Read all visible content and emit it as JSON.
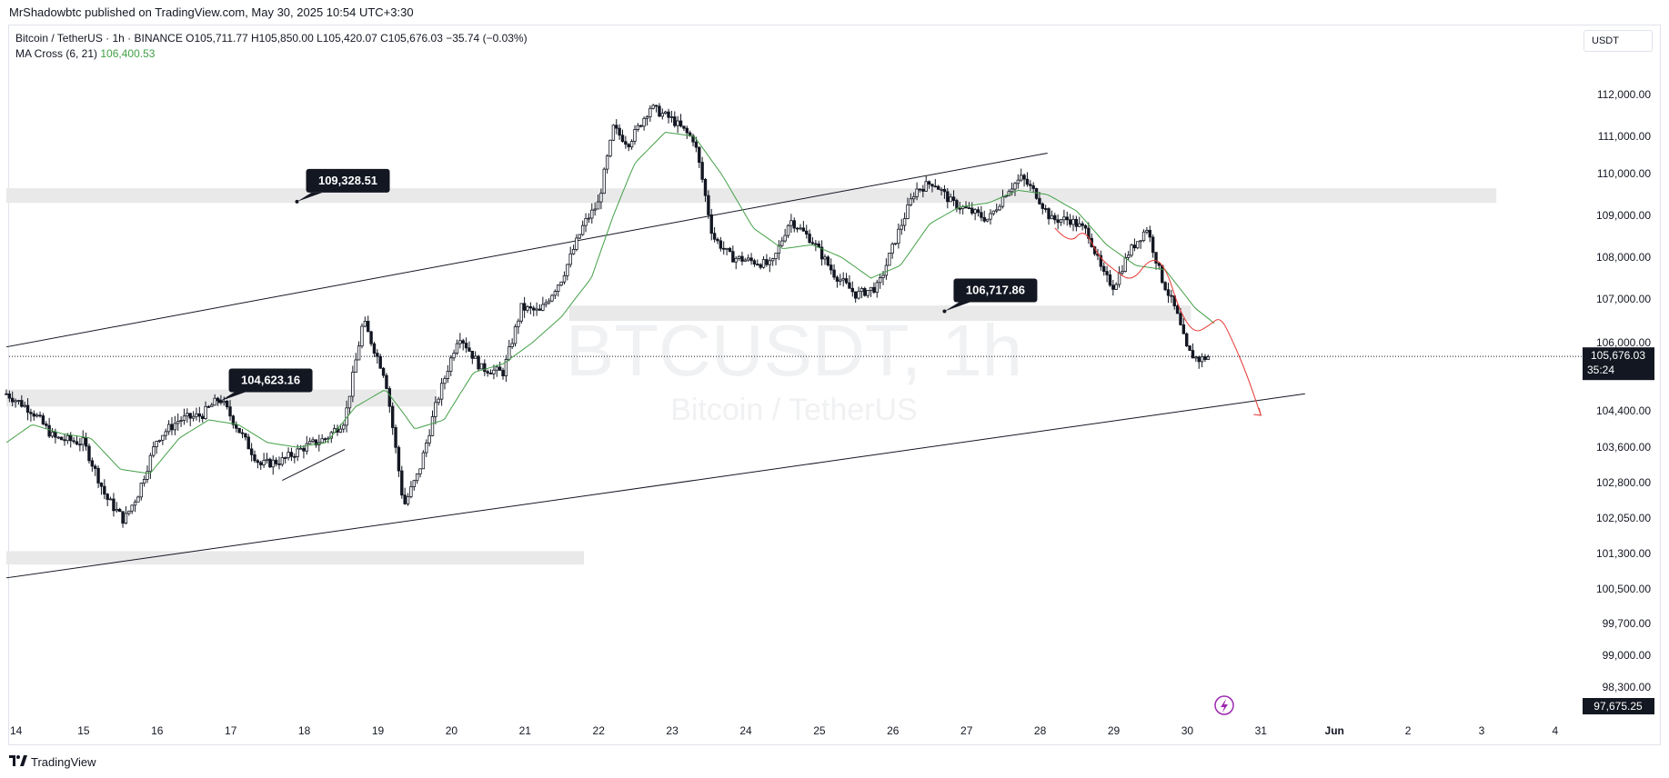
{
  "publisher_line": "MrShadowbtc published on TradingView.com, May 30, 2025 10:54 UTC+3:30",
  "legend": {
    "symbol_line": "Bitcoin / TetherUS · 1h · BINANCE  O105,711.77  H105,850.00  L105,420.07  C105,676.03  −35.74 (−0.03%)",
    "ma_label": "MA Cross (6, 21)",
    "ma_value": "106,400.53"
  },
  "currency_button": "USDT",
  "watermark": {
    "symbol": "BTCUSDT, 1h",
    "name": "Bitcoin / TetherUS"
  },
  "footer_brand": "TradingView",
  "colors": {
    "up": "#131722",
    "down": "#131722",
    "ma": "#43a047",
    "forecast": "#e53935",
    "zone": "#e9e9ea"
  },
  "chart_data": {
    "type": "candlestick",
    "timeframe": "1h",
    "x_ticks": [
      "14",
      "15",
      "16",
      "17",
      "18",
      "19",
      "20",
      "21",
      "22",
      "23",
      "24",
      "25",
      "26",
      "27",
      "28",
      "29",
      "30",
      "31",
      "Jun",
      "2",
      "3",
      "4"
    ],
    "y_ticks": [
      "112,000.00",
      "111,000.00",
      "110,000.00",
      "109,000.00",
      "108,000.00",
      "107,000.00",
      "106,000.00",
      "104,400.00",
      "103,600.00",
      "102,800.00",
      "102,050.00",
      "101,300.00",
      "100,500.00",
      "99,700.00",
      "99,000.00",
      "98,300.00"
    ],
    "y_tick_values": [
      112000,
      111000,
      110000,
      109000,
      108000,
      107000,
      106000,
      104400,
      103600,
      102800,
      102050,
      101300,
      100500,
      99700,
      99000,
      98300
    ],
    "last_price_label": "105,676.03",
    "countdown": "35:24",
    "low_marker_label": "97,675.25",
    "last_price": 105676.03,
    "price_anchors": [
      [
        13.95,
        104800
      ],
      [
        14.3,
        104400
      ],
      [
        14.6,
        103800
      ],
      [
        15.0,
        103700
      ],
      [
        15.3,
        102500
      ],
      [
        15.55,
        102000
      ],
      [
        15.75,
        102600
      ],
      [
        16.0,
        103800
      ],
      [
        16.3,
        104200
      ],
      [
        16.6,
        104300
      ],
      [
        16.85,
        104700
      ],
      [
        17.1,
        104000
      ],
      [
        17.4,
        103200
      ],
      [
        17.7,
        103300
      ],
      [
        18.0,
        103600
      ],
      [
        18.3,
        103800
      ],
      [
        18.55,
        104200
      ],
      [
        18.8,
        106500
      ],
      [
        19.1,
        105200
      ],
      [
        19.35,
        102300
      ],
      [
        19.55,
        103000
      ],
      [
        19.8,
        104600
      ],
      [
        20.1,
        106200
      ],
      [
        20.4,
        105400
      ],
      [
        20.7,
        105300
      ],
      [
        20.95,
        106800
      ],
      [
        21.2,
        106700
      ],
      [
        21.5,
        107500
      ],
      [
        21.8,
        108800
      ],
      [
        22.0,
        109300
      ],
      [
        22.2,
        111200
      ],
      [
        22.4,
        110800
      ],
      [
        22.7,
        111700
      ],
      [
        23.0,
        111400
      ],
      [
        23.3,
        110900
      ],
      [
        23.55,
        108500
      ],
      [
        23.8,
        108000
      ],
      [
        24.1,
        107900
      ],
      [
        24.35,
        107800
      ],
      [
        24.6,
        108900
      ],
      [
        24.9,
        108400
      ],
      [
        25.2,
        107600
      ],
      [
        25.5,
        107100
      ],
      [
        25.8,
        107300
      ],
      [
        26.05,
        108500
      ],
      [
        26.3,
        109600
      ],
      [
        26.55,
        109800
      ],
      [
        26.8,
        109300
      ],
      [
        27.05,
        109100
      ],
      [
        27.3,
        108900
      ],
      [
        27.55,
        109600
      ],
      [
        27.75,
        109900
      ],
      [
        27.95,
        109500
      ],
      [
        28.15,
        108900
      ],
      [
        28.4,
        108900
      ],
      [
        28.65,
        108600
      ],
      [
        28.85,
        107600
      ],
      [
        29.0,
        107300
      ],
      [
        29.2,
        108100
      ],
      [
        29.45,
        108700
      ],
      [
        29.65,
        107500
      ],
      [
        29.85,
        106700
      ],
      [
        30.0,
        105800
      ],
      [
        30.15,
        105600
      ],
      [
        30.3,
        105676
      ]
    ],
    "ma_anchors": [
      [
        13.95,
        103700
      ],
      [
        14.3,
        104100
      ],
      [
        14.7,
        103900
      ],
      [
        15.1,
        103800
      ],
      [
        15.5,
        103100
      ],
      [
        15.9,
        103000
      ],
      [
        16.3,
        103800
      ],
      [
        16.7,
        104200
      ],
      [
        17.1,
        104100
      ],
      [
        17.5,
        103700
      ],
      [
        17.9,
        103600
      ],
      [
        18.3,
        103700
      ],
      [
        18.7,
        104500
      ],
      [
        19.1,
        104900
      ],
      [
        19.5,
        104000
      ],
      [
        19.9,
        104200
      ],
      [
        20.3,
        105300
      ],
      [
        20.7,
        105500
      ],
      [
        21.1,
        106000
      ],
      [
        21.5,
        106600
      ],
      [
        21.9,
        107500
      ],
      [
        22.2,
        109000
      ],
      [
        22.5,
        110300
      ],
      [
        22.9,
        111100
      ],
      [
        23.3,
        111000
      ],
      [
        23.7,
        109900
      ],
      [
        24.1,
        108700
      ],
      [
        24.5,
        108200
      ],
      [
        24.9,
        108300
      ],
      [
        25.3,
        108000
      ],
      [
        25.7,
        107500
      ],
      [
        26.1,
        107800
      ],
      [
        26.5,
        108800
      ],
      [
        26.9,
        109200
      ],
      [
        27.3,
        109300
      ],
      [
        27.7,
        109600
      ],
      [
        28.1,
        109500
      ],
      [
        28.5,
        109100
      ],
      [
        28.9,
        108300
      ],
      [
        29.3,
        107800
      ],
      [
        29.7,
        107700
      ],
      [
        30.1,
        106800
      ],
      [
        30.4,
        106400
      ]
    ],
    "horizontal_zones": [
      {
        "x_from": 13.95,
        "x_to": 34.2,
        "y_from": 109300,
        "y_to": 109650
      },
      {
        "x_from": 21.6,
        "x_to": 30.05,
        "y_from": 106500,
        "y_to": 106850
      },
      {
        "x_from": 13.95,
        "x_to": 19.8,
        "y_from": 104500,
        "y_to": 104900
      },
      {
        "x_from": 13.95,
        "x_to": 21.8,
        "y_from": 101050,
        "y_to": 101350
      }
    ],
    "trend_lines": [
      {
        "from": [
          13.95,
          105900
        ],
        "to": [
          28.1,
          110550
        ]
      },
      {
        "from": [
          13.95,
          100750
        ],
        "to": [
          31.6,
          104800
        ]
      },
      {
        "from": [
          17.7,
          102850
        ],
        "to": [
          18.55,
          103550
        ]
      }
    ],
    "forecast_path": [
      [
        28.2,
        108700
      ],
      [
        28.4,
        108300
      ],
      [
        28.6,
        108700
      ],
      [
        28.8,
        108000
      ],
      [
        29.0,
        107700
      ],
      [
        29.25,
        107400
      ],
      [
        29.5,
        108000
      ],
      [
        29.7,
        107800
      ],
      [
        29.9,
        106700
      ],
      [
        30.1,
        106200
      ],
      [
        30.3,
        106400
      ],
      [
        30.45,
        106600
      ],
      [
        30.6,
        106100
      ],
      [
        30.8,
        105300
      ],
      [
        31.0,
        104300
      ]
    ],
    "callouts": [
      {
        "label": "109,328.51",
        "x": 17.9,
        "y": 109328.51
      },
      {
        "label": "104,623.16",
        "x": 16.85,
        "y": 104623.16
      },
      {
        "label": "106,717.86",
        "x": 26.7,
        "y": 106717.86
      }
    ]
  }
}
